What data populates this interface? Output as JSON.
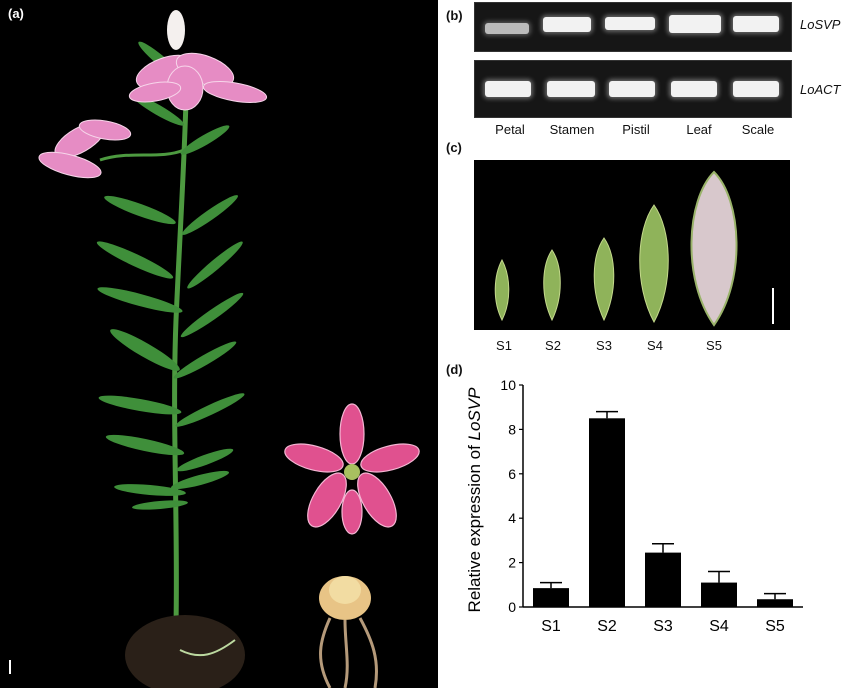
{
  "panels": {
    "a": {
      "label": "(a)"
    },
    "b": {
      "label": "(b)",
      "genes": [
        "LoSVP",
        "LoACT"
      ],
      "lanes": [
        "Petal",
        "Stamen",
        "Pistil",
        "Leaf",
        "Scale"
      ]
    },
    "c": {
      "label": "(c)",
      "stages": [
        "S1",
        "S2",
        "S3",
        "S4",
        "S5"
      ]
    },
    "d": {
      "label": "(d)",
      "ylabel_prefix": "Relative expression of ",
      "ylabel_gene": "LoSVP"
    }
  },
  "colors": {
    "bar": "#000000",
    "petal_pink": "#e676b4",
    "stem_green": "#3f8f3a",
    "bud_green": "#8fb35a"
  },
  "chart_data": {
    "type": "bar",
    "categories": [
      "S1",
      "S2",
      "S3",
      "S4",
      "S5"
    ],
    "values": [
      0.85,
      8.5,
      2.45,
      1.1,
      0.35
    ],
    "errors": [
      0.25,
      0.3,
      0.4,
      0.5,
      0.25
    ],
    "ylabel": "Relative expression of LoSVP",
    "xlabel": "",
    "ylim": [
      0,
      10
    ],
    "yticks": [
      "0",
      "2",
      "4",
      "6",
      "8",
      "10"
    ],
    "grid": false
  }
}
